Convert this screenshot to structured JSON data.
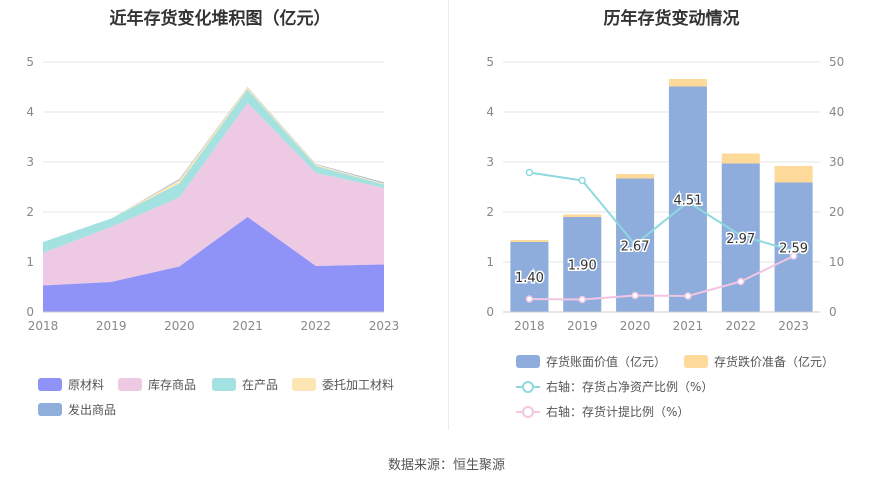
{
  "left_title": "近年存货变化堆积图（亿元）",
  "right_title": "历年存货变动情况",
  "source_text": "数据来源：恒生聚源",
  "chart_data": [
    {
      "type": "area",
      "title": "近年存货变化堆积图（亿元）",
      "categories": [
        "2018",
        "2019",
        "2020",
        "2021",
        "2022",
        "2023"
      ],
      "ylim": [
        0,
        5
      ],
      "yticks": [
        "0",
        "1",
        "2",
        "3",
        "4",
        "5"
      ],
      "stacked": true,
      "grid": true,
      "legend_position": "bottom",
      "series": [
        {
          "name": "原材料",
          "color": "#8f93f8",
          "values": [
            0.53,
            0.6,
            0.91,
            1.9,
            0.92,
            0.95
          ]
        },
        {
          "name": "库存商品",
          "color": "#eec9e4",
          "values": [
            0.65,
            1.1,
            1.38,
            2.28,
            1.86,
            1.53
          ]
        },
        {
          "name": "在产品",
          "color": "#a3e2e0",
          "values": [
            0.22,
            0.17,
            0.28,
            0.27,
            0.14,
            0.07
          ]
        },
        {
          "name": "委托加工材料",
          "color": "#fde6b4",
          "values": [
            0.0,
            0.0,
            0.07,
            0.04,
            0.03,
            0.02
          ]
        },
        {
          "name": "发出商品",
          "color": "#8faedc",
          "values": [
            0.0,
            0.0,
            0.02,
            0.01,
            0.01,
            0.02
          ]
        }
      ]
    },
    {
      "type": "bar",
      "title": "历年存货变动情况",
      "categories": [
        "2018",
        "2019",
        "2020",
        "2021",
        "2022",
        "2023"
      ],
      "ylim": [
        0,
        5
      ],
      "yticks": [
        "0",
        "1",
        "2",
        "3",
        "4",
        "5"
      ],
      "y2lim": [
        0,
        50
      ],
      "y2ticks": [
        "0",
        "10",
        "20",
        "30",
        "40",
        "50"
      ],
      "grid": true,
      "legend_position": "bottom",
      "series": [
        {
          "name": "存货账面价值（亿元）",
          "kind": "bar",
          "axis": "left",
          "color": "#8eaddc",
          "values": [
            1.4,
            1.9,
            2.67,
            4.51,
            2.97,
            2.59
          ],
          "labels": [
            "1.40",
            "1.90",
            "2.67",
            "4.51",
            "2.97",
            "2.59"
          ]
        },
        {
          "name": "存货跌价准备（亿元）",
          "kind": "bar",
          "axis": "left",
          "stacked": true,
          "color": "#fdd99a",
          "values": [
            0.04,
            0.05,
            0.09,
            0.15,
            0.2,
            0.33
          ]
        },
        {
          "name": "右轴：存货占净资产比例（%）",
          "kind": "line",
          "axis": "right",
          "color": "#8dd9de",
          "values": [
            27.9,
            26.3,
            13.5,
            22.0,
            15.3,
            12.2
          ]
        },
        {
          "name": "右轴：存货计提比例（%）",
          "kind": "line",
          "axis": "right",
          "color": "#f0c6e2",
          "values": [
            2.6,
            2.5,
            3.3,
            3.2,
            6.1,
            11.2
          ]
        }
      ]
    }
  ]
}
